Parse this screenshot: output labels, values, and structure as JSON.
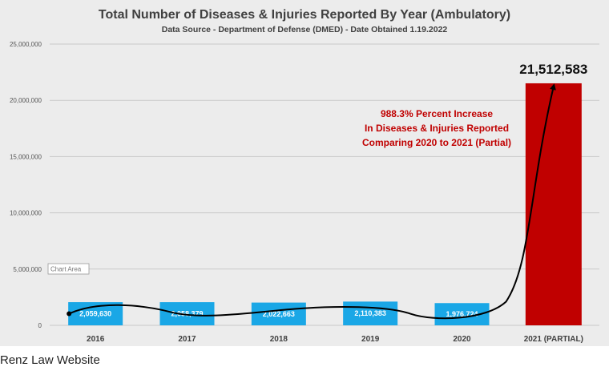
{
  "chart_data": {
    "type": "bar",
    "title": "Total Number of Diseases & Injuries Reported By Year (Ambulatory)",
    "subtitle": "Data Source - Department of Defense (DMED) - Date Obtained 1.19.2022",
    "categories": [
      "2016",
      "2017",
      "2018",
      "2019",
      "2020",
      "2021 (PARTIAL)"
    ],
    "values": [
      2059630,
      2058379,
      2022663,
      2110383,
      1976724,
      21512583
    ],
    "data_labels": [
      "2,059,630",
      "2,058,379",
      "2,022,663",
      "2,110,383",
      "1,976,724",
      "21,512,583"
    ],
    "y_ticks": [
      0,
      5000000,
      10000000,
      15000000,
      20000000,
      25000000
    ],
    "y_tick_labels": [
      "0",
      "5,000,000",
      "10,000,000",
      "15,000,000",
      "20,000,000",
      "25,000,000"
    ],
    "ylim": [
      0,
      25000000
    ],
    "grid": true,
    "xlabel": "",
    "ylabel": "",
    "annotation": [
      "988.3% Percent Increase",
      "In Diseases & Injuries Reported",
      "Comparing 2020 to 2021 (Partial)"
    ],
    "tooltip": "Chart Area",
    "colors": {
      "bar": "#1aa7e6",
      "highlight_bar": "#c00000",
      "annotation": "#c00000",
      "background": "#ececec",
      "grid": "#c9c9c9"
    }
  },
  "caption": "Renz Law Website"
}
